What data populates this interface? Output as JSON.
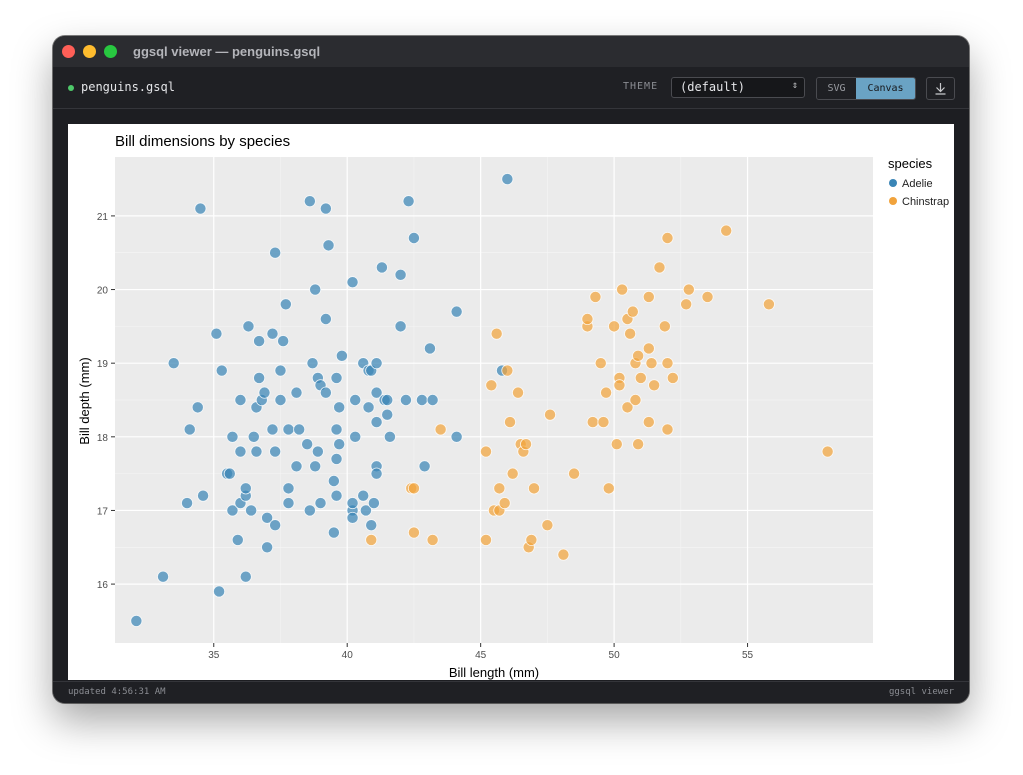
{
  "window": {
    "title": "ggsql viewer — penguins.gsql"
  },
  "toolbar": {
    "file_name": "penguins.gsql",
    "theme_label": "THEME",
    "theme_value": "(default)",
    "svg_label": "SVG",
    "canvas_label": "Canvas",
    "active_render": "Canvas"
  },
  "status": {
    "updated": "updated 4:56:31 AM",
    "viewer": "ggsql viewer"
  },
  "colors": {
    "adelie": "#3a85b6",
    "chinstrap": "#f1a33c",
    "panel": "#ebebeb",
    "accent": "#6aa3c4"
  },
  "icons": {
    "download": "download-icon",
    "select": "chevron-updown-icon"
  },
  "chart_data": {
    "type": "scatter",
    "title": "Bill dimensions by species",
    "xlabel": "Bill length (mm)",
    "ylabel": "Bill depth (mm)",
    "xlim": [
      31.3,
      59.7
    ],
    "ylim": [
      15.2,
      21.8
    ],
    "xticks": [
      35,
      40,
      45,
      50,
      55
    ],
    "yticks": [
      16,
      17,
      18,
      19,
      20,
      21
    ],
    "grid": true,
    "legend": {
      "title": "species",
      "position": "right"
    },
    "series": [
      {
        "name": "Adelie",
        "color": "#3a85b6",
        "points": [
          [
            32.1,
            15.5
          ],
          [
            33.1,
            16.1
          ],
          [
            33.5,
            19.0
          ],
          [
            34.0,
            17.1
          ],
          [
            34.1,
            18.1
          ],
          [
            34.4,
            18.4
          ],
          [
            34.5,
            21.1
          ],
          [
            34.6,
            17.2
          ],
          [
            35.1,
            19.4
          ],
          [
            35.2,
            15.9
          ],
          [
            35.3,
            18.9
          ],
          [
            35.5,
            17.5
          ],
          [
            35.6,
            17.5
          ],
          [
            35.7,
            18.0
          ],
          [
            35.7,
            17.0
          ],
          [
            35.9,
            16.6
          ],
          [
            36.0,
            18.5
          ],
          [
            36.0,
            17.8
          ],
          [
            36.0,
            17.1
          ],
          [
            36.2,
            16.1
          ],
          [
            36.2,
            17.2
          ],
          [
            36.2,
            17.3
          ],
          [
            36.3,
            19.5
          ],
          [
            36.4,
            17.0
          ],
          [
            36.5,
            18.0
          ],
          [
            36.6,
            17.8
          ],
          [
            36.6,
            18.4
          ],
          [
            36.7,
            18.8
          ],
          [
            36.7,
            19.3
          ],
          [
            36.8,
            18.5
          ],
          [
            36.9,
            18.6
          ],
          [
            37.0,
            16.9
          ],
          [
            37.0,
            16.5
          ],
          [
            37.2,
            18.1
          ],
          [
            37.2,
            19.4
          ],
          [
            37.3,
            17.8
          ],
          [
            37.3,
            20.5
          ],
          [
            37.3,
            16.8
          ],
          [
            37.5,
            18.9
          ],
          [
            37.5,
            18.5
          ],
          [
            37.6,
            19.3
          ],
          [
            37.7,
            19.8
          ],
          [
            37.8,
            18.1
          ],
          [
            37.8,
            17.1
          ],
          [
            37.8,
            17.3
          ],
          [
            38.1,
            18.6
          ],
          [
            38.1,
            17.6
          ],
          [
            38.2,
            18.1
          ],
          [
            38.5,
            17.9
          ],
          [
            38.6,
            21.2
          ],
          [
            38.6,
            17.0
          ],
          [
            38.7,
            19.0
          ],
          [
            38.8,
            20.0
          ],
          [
            38.8,
            17.6
          ],
          [
            38.9,
            18.8
          ],
          [
            38.9,
            17.8
          ],
          [
            39.0,
            17.1
          ],
          [
            39.0,
            18.7
          ],
          [
            39.2,
            18.6
          ],
          [
            39.2,
            19.6
          ],
          [
            39.2,
            21.1
          ],
          [
            39.3,
            20.6
          ],
          [
            39.5,
            16.7
          ],
          [
            39.5,
            17.4
          ],
          [
            39.6,
            17.2
          ],
          [
            39.6,
            18.1
          ],
          [
            39.6,
            17.7
          ],
          [
            39.6,
            18.8
          ],
          [
            39.7,
            17.9
          ],
          [
            39.7,
            18.4
          ],
          [
            39.8,
            19.1
          ],
          [
            40.2,
            17.0
          ],
          [
            40.2,
            16.9
          ],
          [
            40.2,
            17.1
          ],
          [
            40.3,
            18.0
          ],
          [
            40.3,
            18.5
          ],
          [
            40.2,
            20.1
          ],
          [
            40.6,
            17.2
          ],
          [
            40.6,
            19.0
          ],
          [
            40.7,
            17.0
          ],
          [
            40.8,
            18.4
          ],
          [
            40.8,
            18.9
          ],
          [
            40.9,
            16.8
          ],
          [
            40.9,
            18.9
          ],
          [
            41.0,
            17.1
          ],
          [
            41.1,
            18.2
          ],
          [
            41.1,
            17.6
          ],
          [
            41.1,
            18.6
          ],
          [
            41.1,
            19.0
          ],
          [
            41.1,
            17.5
          ],
          [
            41.3,
            20.3
          ],
          [
            41.4,
            18.5
          ],
          [
            41.5,
            18.3
          ],
          [
            41.5,
            18.5
          ],
          [
            41.6,
            18.0
          ],
          [
            42.0,
            19.5
          ],
          [
            42.0,
            20.2
          ],
          [
            42.2,
            18.5
          ],
          [
            42.3,
            21.2
          ],
          [
            42.5,
            20.7
          ],
          [
            42.8,
            18.5
          ],
          [
            42.9,
            17.6
          ],
          [
            43.1,
            19.2
          ],
          [
            43.2,
            18.5
          ],
          [
            44.1,
            19.7
          ],
          [
            44.1,
            18.0
          ],
          [
            45.8,
            18.9
          ],
          [
            46.0,
            21.5
          ]
        ]
      },
      {
        "name": "Chinstrap",
        "color": "#f1a33c",
        "points": [
          [
            40.9,
            16.6
          ],
          [
            42.4,
            17.3
          ],
          [
            42.5,
            17.3
          ],
          [
            42.5,
            16.7
          ],
          [
            43.2,
            16.6
          ],
          [
            43.5,
            18.1
          ],
          [
            45.2,
            17.8
          ],
          [
            45.2,
            16.6
          ],
          [
            45.4,
            18.7
          ],
          [
            45.5,
            17.0
          ],
          [
            45.6,
            19.4
          ],
          [
            45.7,
            17.3
          ],
          [
            45.7,
            17.0
          ],
          [
            45.9,
            17.1
          ],
          [
            46.0,
            18.9
          ],
          [
            46.1,
            18.2
          ],
          [
            46.2,
            17.5
          ],
          [
            46.4,
            18.6
          ],
          [
            46.5,
            17.9
          ],
          [
            46.6,
            17.8
          ],
          [
            46.7,
            17.9
          ],
          [
            46.8,
            16.5
          ],
          [
            46.9,
            16.6
          ],
          [
            47.0,
            17.3
          ],
          [
            47.5,
            16.8
          ],
          [
            47.6,
            18.3
          ],
          [
            48.1,
            16.4
          ],
          [
            48.5,
            17.5
          ],
          [
            49.0,
            19.5
          ],
          [
            49.0,
            19.6
          ],
          [
            49.2,
            18.2
          ],
          [
            49.3,
            19.9
          ],
          [
            49.5,
            19.0
          ],
          [
            49.6,
            18.2
          ],
          [
            49.7,
            18.6
          ],
          [
            49.8,
            17.3
          ],
          [
            50.0,
            19.5
          ],
          [
            50.1,
            17.9
          ],
          [
            50.2,
            18.8
          ],
          [
            50.2,
            18.7
          ],
          [
            50.3,
            20.0
          ],
          [
            50.5,
            18.4
          ],
          [
            50.5,
            19.6
          ],
          [
            50.6,
            19.4
          ],
          [
            50.7,
            19.7
          ],
          [
            50.8,
            19.0
          ],
          [
            50.8,
            18.5
          ],
          [
            50.9,
            19.1
          ],
          [
            50.9,
            17.9
          ],
          [
            51.0,
            18.8
          ],
          [
            51.3,
            18.2
          ],
          [
            51.3,
            19.2
          ],
          [
            51.3,
            19.9
          ],
          [
            51.4,
            19.0
          ],
          [
            51.5,
            18.7
          ],
          [
            51.7,
            20.3
          ],
          [
            51.9,
            19.5
          ],
          [
            52.0,
            18.1
          ],
          [
            52.0,
            19.0
          ],
          [
            52.0,
            20.7
          ],
          [
            52.2,
            18.8
          ],
          [
            52.7,
            19.8
          ],
          [
            52.8,
            20.0
          ],
          [
            53.5,
            19.9
          ],
          [
            54.2,
            20.8
          ],
          [
            55.8,
            19.8
          ],
          [
            58.0,
            17.8
          ]
        ]
      }
    ]
  }
}
